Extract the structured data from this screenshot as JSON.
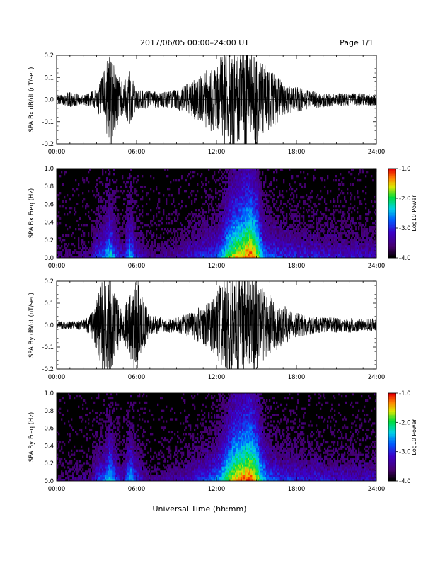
{
  "header": {
    "title": "2017/06/05  00:00–24:00 UT",
    "page": "Page 1/1"
  },
  "footer": {
    "xlabel": "Universal Time (hh:mm)"
  },
  "chart_data": [
    {
      "type": "line",
      "ylabel": "SPA Bx dB/dt (nT/sec)",
      "xlim": [
        0,
        24
      ],
      "ylim": [
        -0.2,
        0.2
      ],
      "xticks": [
        "00:00",
        "06:00",
        "12:00",
        "18:00",
        "24:00"
      ],
      "yticks": [
        "-0.2",
        "-0.1",
        "0.0",
        "0.1",
        "0.2"
      ],
      "envelope": {
        "x": [
          0,
          1,
          2,
          3,
          3.5,
          4,
          4.5,
          5,
          5.5,
          6,
          7,
          8,
          9,
          10,
          11,
          11.5,
          12,
          12.5,
          13,
          13.5,
          14,
          14.5,
          15,
          15.5,
          16,
          16.5,
          17,
          18,
          19,
          20,
          21,
          22,
          23,
          24
        ],
        "amp": [
          0.015,
          0.03,
          0.02,
          0.04,
          0.1,
          0.2,
          0.12,
          0.06,
          0.12,
          0.04,
          0.035,
          0.03,
          0.04,
          0.07,
          0.1,
          0.13,
          0.12,
          0.2,
          0.2,
          0.18,
          0.2,
          0.2,
          0.2,
          0.14,
          0.12,
          0.1,
          0.06,
          0.05,
          0.035,
          0.03,
          0.025,
          0.025,
          0.025,
          0.025
        ]
      }
    },
    {
      "type": "heatmap",
      "ylabel": "SPA Bx Freq (Hz)",
      "xlim": [
        0,
        24
      ],
      "ylim": [
        0.0,
        1.0
      ],
      "xticks": [
        "00:00",
        "06:00",
        "12:00",
        "18:00",
        "24:00"
      ],
      "yticks": [
        "0.0",
        "0.2",
        "0.4",
        "0.6",
        "0.8",
        "1.0"
      ],
      "colorbar": {
        "label": "Log10 Power",
        "range": [
          -4.0,
          -1.0
        ],
        "ticks": [
          "-1.0",
          "-2.0",
          "-3.0",
          "-4.0"
        ]
      },
      "activity": {
        "x": [
          0,
          2.5,
          3,
          3.5,
          4,
          4.5,
          5,
          5.5,
          6,
          7,
          9,
          11,
          12,
          12.5,
          13,
          13.5,
          14,
          14.5,
          15,
          15.5,
          16,
          17,
          19,
          24
        ],
        "level": [
          0.1,
          0.15,
          0.35,
          0.4,
          0.6,
          0.35,
          0.25,
          0.55,
          0.3,
          0.15,
          0.2,
          0.35,
          0.4,
          0.55,
          0.75,
          0.85,
          0.9,
          1.0,
          0.85,
          0.5,
          0.4,
          0.35,
          0.3,
          0.25
        ]
      }
    },
    {
      "type": "line",
      "ylabel": "SPA By dB/dt (nT/sec)",
      "xlim": [
        0,
        24
      ],
      "ylim": [
        -0.2,
        0.2
      ],
      "xticks": [
        "00:00",
        "06:00",
        "12:00",
        "18:00",
        "24:00"
      ],
      "yticks": [
        "-0.2",
        "-0.1",
        "0.0",
        "0.1",
        "0.2"
      ],
      "envelope": {
        "x": [
          0,
          1,
          2,
          2.5,
          3,
          3.5,
          4,
          4.5,
          5,
          5.5,
          6,
          6.5,
          7,
          8,
          9,
          10,
          11,
          11.5,
          12,
          12.5,
          13,
          13.5,
          14,
          14.5,
          15,
          15.5,
          16,
          17,
          18,
          19,
          20,
          21,
          22,
          23,
          24
        ],
        "amp": [
          0.015,
          0.015,
          0.02,
          0.04,
          0.1,
          0.2,
          0.2,
          0.12,
          0.06,
          0.14,
          0.2,
          0.1,
          0.04,
          0.03,
          0.03,
          0.05,
          0.08,
          0.1,
          0.12,
          0.2,
          0.2,
          0.2,
          0.2,
          0.2,
          0.2,
          0.14,
          0.12,
          0.08,
          0.05,
          0.04,
          0.03,
          0.03,
          0.03,
          0.025,
          0.025
        ]
      }
    },
    {
      "type": "heatmap",
      "ylabel": "SPA By Freq (Hz)",
      "xlim": [
        0,
        24
      ],
      "ylim": [
        0.0,
        1.0
      ],
      "xticks": [
        "00:00",
        "06:00",
        "12:00",
        "18:00",
        "24:00"
      ],
      "yticks": [
        "0.0",
        "0.2",
        "0.4",
        "0.6",
        "0.8",
        "1.0"
      ],
      "colorbar": {
        "label": "Log10 Power",
        "range": [
          -4.0,
          -1.0
        ],
        "ticks": [
          "-1.0",
          "-2.0",
          "-3.0",
          "-4.0"
        ]
      },
      "activity": {
        "x": [
          0,
          2.5,
          3,
          3.5,
          4,
          4.5,
          5,
          5.5,
          6,
          7,
          9,
          11,
          12,
          12.5,
          13,
          13.5,
          14,
          14.5,
          15,
          15.5,
          16,
          17,
          19,
          24
        ],
        "level": [
          0.1,
          0.15,
          0.35,
          0.4,
          0.6,
          0.35,
          0.25,
          0.55,
          0.35,
          0.15,
          0.2,
          0.35,
          0.45,
          0.6,
          0.8,
          0.9,
          0.95,
          1.0,
          0.85,
          0.55,
          0.4,
          0.35,
          0.3,
          0.25
        ]
      }
    }
  ]
}
